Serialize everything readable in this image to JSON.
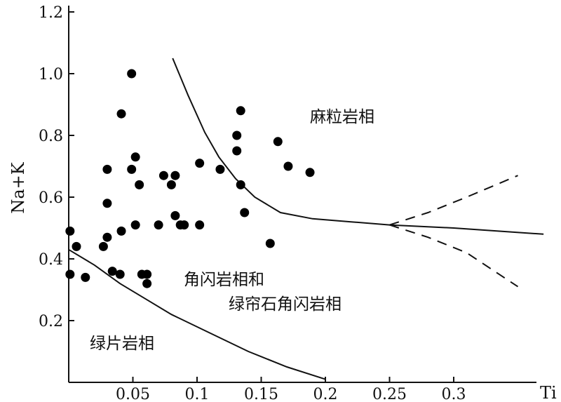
{
  "chart_data": {
    "type": "scatter",
    "xlabel": "Ti",
    "ylabel": "Na+K",
    "xlim": [
      0,
      0.38
    ],
    "ylim": [
      0,
      1.22
    ],
    "x_ticks": [
      "0.05",
      "0.1",
      "0.15",
      "0.2",
      "0.25",
      "0.3"
    ],
    "y_ticks": [
      "0.2",
      "0.4",
      "0.6",
      "0.8",
      "1.0",
      "1.2"
    ],
    "grid": false,
    "regions": {
      "granulite": "麻粒岩相",
      "amphibolite_line1": "角闪岩相和",
      "amphibolite_line2": "绿帘石角闪岩相",
      "greenschist": "绿片岩相"
    },
    "points": [
      [
        0.001,
        0.49
      ],
      [
        0.001,
        0.35
      ],
      [
        0.006,
        0.44
      ],
      [
        0.013,
        0.34
      ],
      [
        0.027,
        0.44
      ],
      [
        0.03,
        0.47
      ],
      [
        0.03,
        0.58
      ],
      [
        0.03,
        0.69
      ],
      [
        0.034,
        0.36
      ],
      [
        0.04,
        0.35
      ],
      [
        0.041,
        0.49
      ],
      [
        0.041,
        0.87
      ],
      [
        0.049,
        0.69
      ],
      [
        0.049,
        1.0
      ],
      [
        0.052,
        0.73
      ],
      [
        0.052,
        0.51
      ],
      [
        0.055,
        0.64
      ],
      [
        0.057,
        0.35
      ],
      [
        0.061,
        0.35
      ],
      [
        0.061,
        0.32
      ],
      [
        0.07,
        0.51
      ],
      [
        0.074,
        0.67
      ],
      [
        0.08,
        0.64
      ],
      [
        0.083,
        0.54
      ],
      [
        0.083,
        0.67
      ],
      [
        0.087,
        0.51
      ],
      [
        0.09,
        0.51
      ],
      [
        0.102,
        0.71
      ],
      [
        0.102,
        0.51
      ],
      [
        0.118,
        0.69
      ],
      [
        0.131,
        0.8
      ],
      [
        0.131,
        0.75
      ],
      [
        0.134,
        0.88
      ],
      [
        0.134,
        0.64
      ],
      [
        0.137,
        0.55
      ],
      [
        0.157,
        0.45
      ],
      [
        0.163,
        0.78
      ],
      [
        0.171,
        0.7
      ],
      [
        0.188,
        0.68
      ]
    ],
    "boundaries": {
      "granulite_amphibolite": [
        [
          0.081,
          1.05
        ],
        [
          0.093,
          0.93
        ],
        [
          0.106,
          0.81
        ],
        [
          0.117,
          0.73
        ],
        [
          0.13,
          0.66
        ],
        [
          0.145,
          0.6
        ],
        [
          0.165,
          0.55
        ],
        [
          0.19,
          0.53
        ],
        [
          0.22,
          0.52
        ],
        [
          0.25,
          0.51
        ],
        [
          0.3,
          0.5
        ],
        [
          0.37,
          0.48
        ]
      ],
      "amphibolite_greenschist": [
        [
          0.0,
          0.43
        ],
        [
          0.02,
          0.38
        ],
        [
          0.04,
          0.32
        ],
        [
          0.06,
          0.27
        ],
        [
          0.08,
          0.22
        ],
        [
          0.11,
          0.16
        ],
        [
          0.14,
          0.1
        ],
        [
          0.17,
          0.05
        ],
        [
          0.2,
          0.01
        ]
      ],
      "dashed_upper": [
        [
          0.25,
          0.51
        ],
        [
          0.28,
          0.55
        ],
        [
          0.31,
          0.6
        ],
        [
          0.35,
          0.67
        ]
      ],
      "dashed_lower": [
        [
          0.25,
          0.51
        ],
        [
          0.28,
          0.47
        ],
        [
          0.31,
          0.42
        ],
        [
          0.35,
          0.31
        ]
      ]
    }
  }
}
